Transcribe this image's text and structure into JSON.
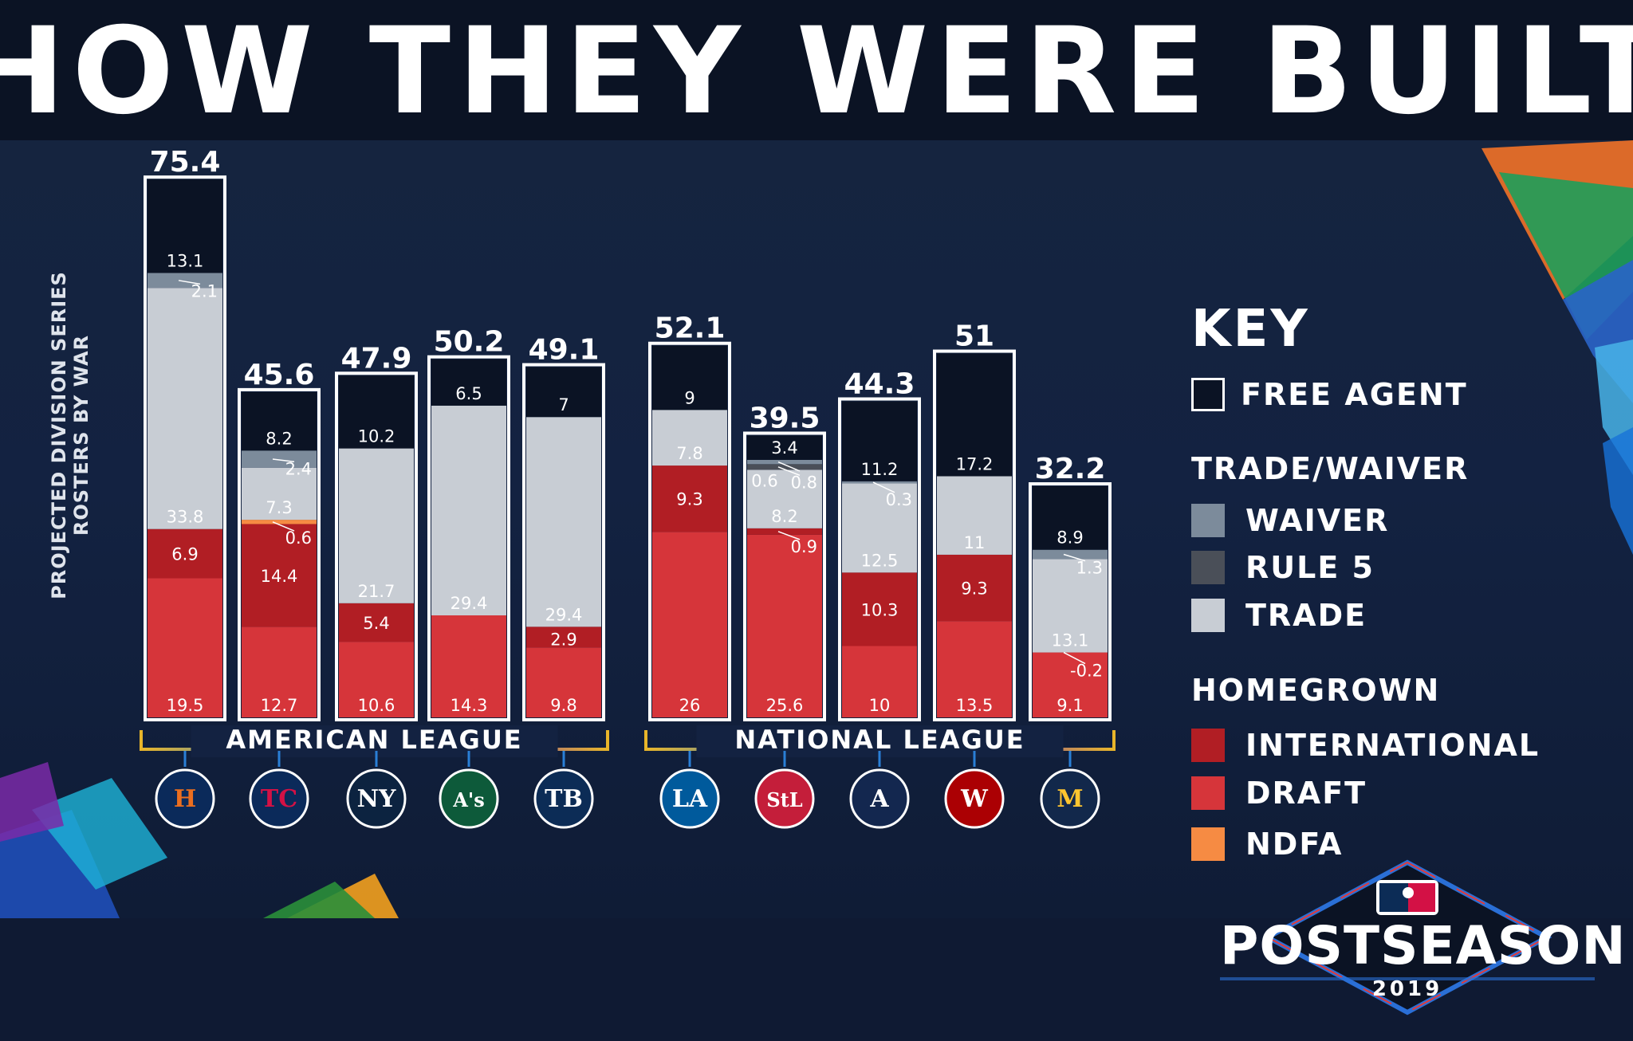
{
  "title": "HOW THEY WERE BUILT",
  "chart_data": {
    "type": "bar",
    "stacked": true,
    "ylabel": "PROJECTED DIVISION SERIES ROSTERS BY WAR",
    "segment_order": [
      "draft",
      "international",
      "ndfa",
      "trade",
      "rule5",
      "waiver",
      "free_agent"
    ],
    "colors": {
      "free_agent": "#0b1324",
      "waiver": "#7c8b9b",
      "rule5": "#4a4f58",
      "trade": "#c8cdd4",
      "international": "#b11e24",
      "draft": "#d6353a",
      "ndfa": "#f68b43"
    },
    "leagues": [
      {
        "name": "AMERICAN LEAGUE",
        "teams": [
          {
            "team": "HOU",
            "total": "75.4",
            "segments": {
              "draft": 19.5,
              "international": 6.9,
              "trade": 33.8,
              "waiver": 2.1,
              "free_agent": 13.1
            }
          },
          {
            "team": "MIN",
            "total": "45.6",
            "segments": {
              "draft": 12.7,
              "international": 14.4,
              "ndfa": 0.6,
              "trade": 7.3,
              "waiver": 2.4,
              "free_agent": 8.2
            }
          },
          {
            "team": "NYY",
            "total": "47.9",
            "segments": {
              "draft": 10.6,
              "international": 5.4,
              "trade": 21.7,
              "free_agent": 10.2
            }
          },
          {
            "team": "OAK",
            "total": "50.2",
            "segments": {
              "draft": 14.3,
              "trade": 29.4,
              "free_agent": 6.5
            }
          },
          {
            "team": "TB",
            "total": "49.1",
            "segments": {
              "draft": 9.8,
              "international": 2.9,
              "trade": 29.4,
              "free_agent": 7
            }
          }
        ]
      },
      {
        "name": "NATIONAL LEAGUE",
        "teams": [
          {
            "team": "LAD",
            "total": "52.1",
            "segments": {
              "draft": 26,
              "international": 9.3,
              "trade": 7.8,
              "free_agent": 9
            }
          },
          {
            "team": "STL",
            "total": "39.5",
            "segments": {
              "draft": 25.6,
              "international": 0.9,
              "trade": 8.2,
              "rule5": 0.8,
              "waiver": 0.6,
              "free_agent": 3.4
            }
          },
          {
            "team": "ATL",
            "total": "44.3",
            "segments": {
              "draft": 10,
              "international": 10.3,
              "trade": 12.5,
              "waiver": 0.3,
              "free_agent": 11.2
            }
          },
          {
            "team": "WSH",
            "total": "51",
            "segments": {
              "draft": 13.5,
              "international": 9.3,
              "trade": 11,
              "free_agent": 17.2
            }
          },
          {
            "team": "MIL",
            "total": "32.2",
            "segments": {
              "draft": 9.1,
              "international": -0.2,
              "trade": 13.1,
              "waiver": 1.3,
              "free_agent": 8.9
            }
          }
        ]
      }
    ],
    "team_icons": {
      "HOU": {
        "glyph": "H",
        "bg": "#0b2a5a",
        "fg": "#eb6e1f",
        "icon": "astros-logo-icon"
      },
      "MIN": {
        "glyph": "TC",
        "bg": "#0b2a5a",
        "fg": "#d31145",
        "icon": "twins-logo-icon"
      },
      "NYY": {
        "glyph": "NY",
        "bg": "#0c2340",
        "fg": "#ffffff",
        "icon": "yankees-logo-icon"
      },
      "OAK": {
        "glyph": "A's",
        "bg": "#0d5a3a",
        "fg": "#ffffff",
        "icon": "athletics-logo-icon"
      },
      "TB": {
        "glyph": "TB",
        "bg": "#0c2c56",
        "fg": "#ffffff",
        "icon": "rays-logo-icon"
      },
      "LAD": {
        "glyph": "LA",
        "bg": "#005a9c",
        "fg": "#ffffff",
        "icon": "dodgers-logo-icon"
      },
      "STL": {
        "glyph": "StL",
        "bg": "#c41e3a",
        "fg": "#ffffff",
        "icon": "cardinals-logo-icon"
      },
      "ATL": {
        "glyph": "A",
        "bg": "#13274f",
        "fg": "#ffffff",
        "icon": "braves-logo-icon"
      },
      "WSH": {
        "glyph": "W",
        "bg": "#ab0003",
        "fg": "#ffffff",
        "icon": "nationals-logo-icon"
      },
      "MIL": {
        "glyph": "M",
        "bg": "#12284b",
        "fg": "#ffc52f",
        "icon": "brewers-logo-icon"
      }
    }
  },
  "key": {
    "title": "KEY",
    "free_agent": "FREE AGENT",
    "trade_group": "TRADE/WAIVER",
    "waiver": "WAIVER",
    "rule5": "RULE 5",
    "trade": "TRADE",
    "homegrown_group": "HOMEGROWN",
    "international": "INTERNATIONAL",
    "draft": "DRAFT",
    "ndfa": "NDFA"
  },
  "logo": {
    "word": "POSTSEASON",
    "year": "2019"
  }
}
